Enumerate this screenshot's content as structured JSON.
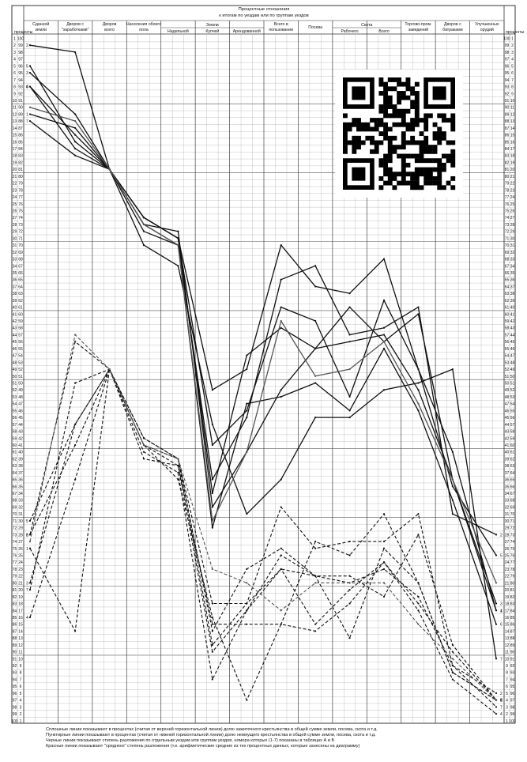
{
  "header": {
    "title_line1": "Процентные отношения",
    "title_line2": "к итогам по уездам или по группам уездов",
    "left_label": "проценты",
    "right_label": "проценты"
  },
  "columns": [
    {
      "key": "sdannoy",
      "label": "Сданной земли"
    },
    {
      "key": "zarab",
      "label": "Дворов с \"заработками\""
    },
    {
      "key": "dvorov",
      "label": "Дворов всего"
    },
    {
      "key": "nasel",
      "label": "Населения обоего пола"
    },
    {
      "key": "nadel",
      "label": "Надельной"
    },
    {
      "key": "kupch",
      "label": "Купчей"
    },
    {
      "key": "arend",
      "label": "Арендованной"
    },
    {
      "key": "vsego_polz",
      "label": "Всего в пользовании"
    },
    {
      "key": "posev",
      "label": "Посева"
    },
    {
      "key": "rab",
      "label": "Рабочего"
    },
    {
      "key": "vsego_skot",
      "label": "Всего"
    },
    {
      "key": "torg",
      "label": "Торгово-пром. заведений"
    },
    {
      "key": "batr",
      "label": "Дворов с батраками"
    },
    {
      "key": "orud",
      "label": "Улучшенных орудий"
    }
  ],
  "groups": [
    {
      "label": "Земли",
      "from": 4,
      "to": 6
    },
    {
      "label": "Скота",
      "from": 9,
      "to": 10
    }
  ],
  "footnotes": [
    "Сплошные линии показывают в процентах (считая от верхней горизонтальной линии) долю зажиточного крестьянства в общей сумме земли, посева, скота и т.д.",
    "Пунктирные линии показывают в процентах (считая от нижней горизонтальной линии) долю неимущего крестьянства в общей сумме земли, посева, скота и т.д.",
    "Черные линии показывают степень разложения по отдельным уездам или группам уездов, номера которых (1-7) показаны в таблицах А и Б",
    "Красные линии показывают \"среднюю\" степень разложения (т.е. арифметические средние из тех процентных данных, которые занесены на диаграмму)"
  ],
  "qr_code": {
    "description_icon": "qr-code-icon"
  },
  "chart_data": {
    "type": "line",
    "x": [
      "Сданной земли",
      "Дворов с \"заработками\"",
      "Дворов всего",
      "Населения обоего пола",
      "Надельной",
      "Купчей",
      "Арендованной",
      "Всего в пользовании",
      "Посева",
      "Рабочего",
      "Всего",
      "Торгово-пром. заведений",
      "Дворов с батраками",
      "Улучшенных орудий"
    ],
    "ylim": [
      1,
      100
    ],
    "y_direction": "top-to-bottom",
    "left_ticks": "1..100",
    "right_ticks": "100..1",
    "grid": true,
    "solid_color": "#111111",
    "dashed_color": "#111111",
    "mean_color": "#555555",
    "series": [
      {
        "name": "1",
        "style": "solid",
        "values": [
          12,
          14,
          20,
          27,
          30,
          52,
          49,
          31,
          37,
          38,
          33,
          49,
          61,
          84
        ]
      },
      {
        "name": "2",
        "style": "solid",
        "values": [
          2,
          3,
          20,
          29,
          31,
          65,
          56,
          36,
          34,
          44,
          43,
          40,
          70,
          73
        ]
      },
      {
        "name": "3",
        "style": "solid",
        "values": [
          6,
          12,
          20,
          27,
          30,
          67,
          47,
          43,
          46,
          40,
          45,
          41,
          65,
          83
        ]
      },
      {
        "name": "4",
        "style": "solid",
        "values": [
          8,
          15,
          20,
          28,
          29,
          69,
          61,
          52,
          46,
          45,
          44,
          52,
          65,
          84
        ]
      },
      {
        "name": "5",
        "style": "solid",
        "values": [
          5,
          16,
          20,
          27,
          30,
          60,
          55,
          40,
          42,
          53,
          39,
          49,
          66,
          76
        ]
      },
      {
        "name": "6",
        "style": "solid",
        "values": [
          8,
          17,
          20,
          28,
          31,
          72,
          54,
          53,
          51,
          55,
          46,
          55,
          68,
          86
        ]
      },
      {
        "name": "7",
        "style": "solid",
        "values": [
          13,
          18,
          20,
          31,
          34,
          57,
          70,
          65,
          56,
          56,
          52,
          51,
          49,
          91
        ]
      },
      {
        "name": "средняя",
        "style": "mean",
        "values": [
          11,
          13,
          20,
          28,
          31,
          71,
          61,
          42,
          50,
          49,
          45,
          54,
          65,
          80
        ]
      },
      {
        "name": "1",
        "style": "dashed",
        "values": [
          75,
          87,
          49,
          62,
          63,
          86,
          86,
          86,
          74,
          76,
          70,
          80,
          93,
          97
        ]
      },
      {
        "name": "2",
        "style": "dashed",
        "values": [
          73,
          45,
          49,
          59,
          62,
          89,
          83,
          69,
          75,
          74,
          74,
          70,
          92,
          96
        ]
      },
      {
        "name": "3",
        "style": "dashed",
        "values": [
          80,
          57,
          49,
          61,
          64,
          94,
          84,
          76,
          79,
          88,
          75,
          80,
          93,
          97
        ]
      },
      {
        "name": "4",
        "style": "dashed",
        "values": [
          85,
          65,
          49,
          60,
          65,
          85,
          97,
          86,
          87,
          83,
          77,
          84,
          94,
          99
        ]
      },
      {
        "name": "5",
        "style": "dashed",
        "values": [
          71,
          57,
          49,
          59,
          62,
          87,
          78,
          75,
          79,
          79,
          82,
          73,
          89,
          97
        ]
      },
      {
        "name": "6",
        "style": "dashed",
        "values": [
          73,
          60,
          49,
          60,
          63,
          90,
          84,
          78,
          86,
          81,
          77,
          83,
          90,
          97
        ]
      },
      {
        "name": "7",
        "style": "dashed",
        "values": [
          81,
          51,
          49,
          60,
          62,
          83,
          83,
          78,
          79,
          80,
          78,
          82,
          92,
          98
        ]
      },
      {
        "name": "средняя",
        "style": "dashed-mean",
        "values": [
          74,
          44,
          49,
          60,
          62,
          78,
          80,
          84,
          80,
          80,
          80,
          86,
          91,
          97
        ]
      }
    ]
  }
}
